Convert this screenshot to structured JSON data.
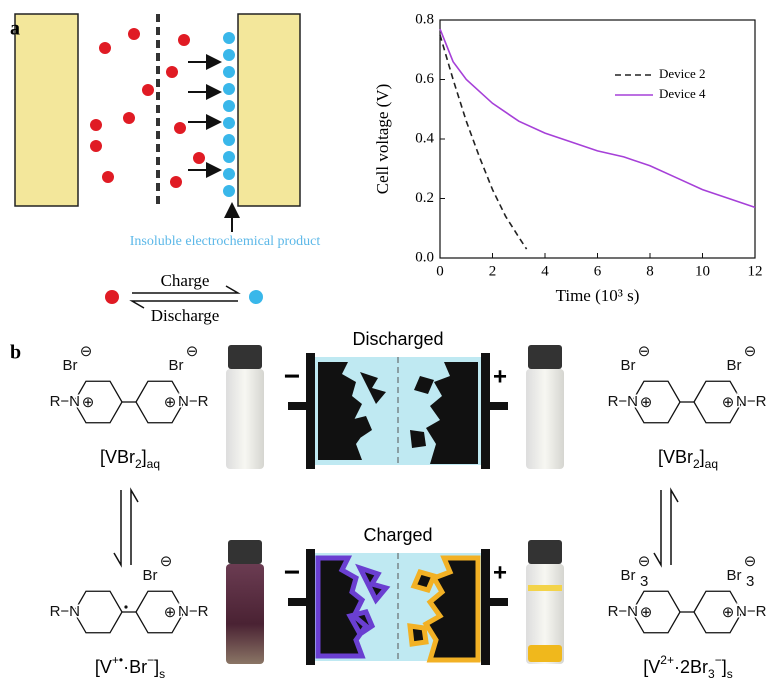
{
  "panel_a": {
    "label": "a",
    "product_label": "Insoluble electrochemical product",
    "charge": "Charge",
    "discharge": "Discharge"
  },
  "chart_data": {
    "type": "line",
    "xlabel": "Time (10³ s)",
    "ylabel": "Cell voltage (V)",
    "xlim": [
      0,
      12
    ],
    "ylim": [
      0,
      0.8
    ],
    "xticks": [
      0,
      2,
      4,
      6,
      8,
      10,
      12
    ],
    "yticks": [
      {
        "value": 0,
        "label": "0.0"
      },
      0.2,
      0.4,
      0.6,
      0.8
    ],
    "legend": "upper right",
    "series": [
      {
        "name": "Device 2",
        "color": "#222222",
        "dash": true,
        "x": [
          0,
          0.5,
          1,
          1.5,
          2,
          2.5,
          3,
          3.3
        ],
        "values": [
          0.75,
          0.6,
          0.46,
          0.34,
          0.23,
          0.14,
          0.07,
          0.03
        ]
      },
      {
        "name": "Device 4",
        "color": "#a640d8",
        "dash": false,
        "x": [
          0,
          0.5,
          1,
          2,
          3,
          4,
          5,
          6,
          7,
          8,
          9,
          10,
          11,
          12
        ],
        "values": [
          0.77,
          0.66,
          0.6,
          0.52,
          0.46,
          0.42,
          0.39,
          0.36,
          0.34,
          0.31,
          0.27,
          0.23,
          0.2,
          0.17
        ]
      }
    ]
  },
  "panel_b": {
    "label": "b",
    "states": [
      "Discharged",
      "Charged"
    ],
    "negative": "−",
    "positive": "+",
    "structures": [
      {
        "left": "R−N",
        "right": "N−R",
        "ring_charges": [
          "⊕",
          "⊕"
        ],
        "anions": [
          {
            "text": "Br",
            "charge": "⊖"
          },
          {
            "text": "Br",
            "charge": "⊖"
          }
        ],
        "caption": {
          "parts": [
            "[VBr",
            "2",
            "]",
            "aq"
          ],
          "style": [
            "n",
            "sub",
            "n",
            "sub"
          ]
        }
      },
      {
        "left": "R−N",
        "right": "N−R",
        "ring_charges": [
          null,
          "⊕"
        ],
        "anions": [
          {
            "text": "Br",
            "charge": "⊖"
          }
        ],
        "caption": {
          "parts": [
            "[V",
            "+•",
            "·Br",
            "−",
            "]",
            "s"
          ],
          "style": [
            "n",
            "sup",
            "n",
            "sup",
            "n",
            "sub"
          ]
        }
      },
      {
        "left": "R−N",
        "right": "N−R",
        "ring_charges": [
          "⊕",
          "⊕"
        ],
        "anions": [
          {
            "text": "Br",
            "charge": "⊖"
          },
          {
            "text": "Br",
            "charge": "⊖"
          }
        ],
        "caption": {
          "parts": [
            "[VBr",
            "2",
            "]",
            "aq"
          ],
          "style": [
            "n",
            "sub",
            "n",
            "sub"
          ]
        }
      },
      {
        "left": "R−N",
        "right": "N−R",
        "ring_charges": [
          "⊕",
          "⊕"
        ],
        "anions": [
          {
            "text": "Br",
            "sub": "3",
            "charge": "⊖"
          },
          {
            "text": "Br",
            "sub": "3",
            "charge": "⊖"
          }
        ],
        "caption": {
          "parts": [
            "[V",
            "2+",
            "·2Br",
            "3",
            "−",
            "]",
            "s"
          ],
          "style": [
            "n",
            "sup",
            "n",
            "sub",
            "sup",
            "n",
            "sub"
          ]
        }
      }
    ]
  }
}
